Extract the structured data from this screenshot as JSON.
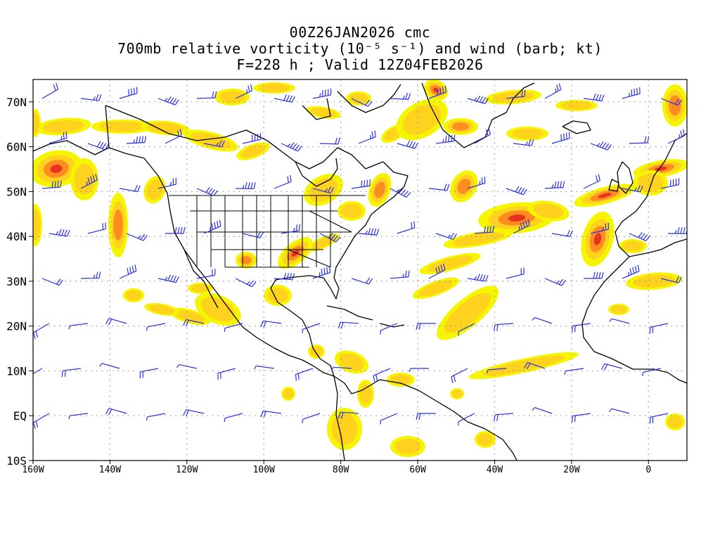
{
  "title": {
    "line1": "00Z26JAN2026 cmc",
    "line2": "700mb relative vorticity (10⁻⁵ s⁻¹) and wind (barb; kt)",
    "line3": "F=228 h ; Valid 12Z04FEB2026"
  },
  "map": {
    "lon_range": [
      -160,
      10
    ],
    "lat_range": [
      -10,
      75
    ],
    "lat_ticks": [
      {
        "value": 70,
        "label": "70N"
      },
      {
        "value": 60,
        "label": "60N"
      },
      {
        "value": 50,
        "label": "50N"
      },
      {
        "value": 40,
        "label": "40N"
      },
      {
        "value": 30,
        "label": "30N"
      },
      {
        "value": 20,
        "label": "20N"
      },
      {
        "value": 10,
        "label": "10N"
      },
      {
        "value": 0,
        "label": "EQ"
      },
      {
        "value": -10,
        "label": "10S"
      }
    ],
    "lon_ticks": [
      {
        "value": -160,
        "label": "160W"
      },
      {
        "value": -140,
        "label": "140W"
      },
      {
        "value": -120,
        "label": "120W"
      },
      {
        "value": -100,
        "label": "100W"
      },
      {
        "value": -80,
        "label": "80W"
      },
      {
        "value": -60,
        "label": "60W"
      },
      {
        "value": -40,
        "label": "40W"
      },
      {
        "value": -20,
        "label": "20W"
      },
      {
        "value": 0,
        "label": "0"
      }
    ],
    "colors": {
      "shade_low": "#f5f500",
      "shade_mid": "#ffd21e",
      "shade_high": "#ff8c1e",
      "shade_max": "#e6321e",
      "barb": "#2830e6",
      "coast": "#000000",
      "grid": "#999999"
    }
  }
}
